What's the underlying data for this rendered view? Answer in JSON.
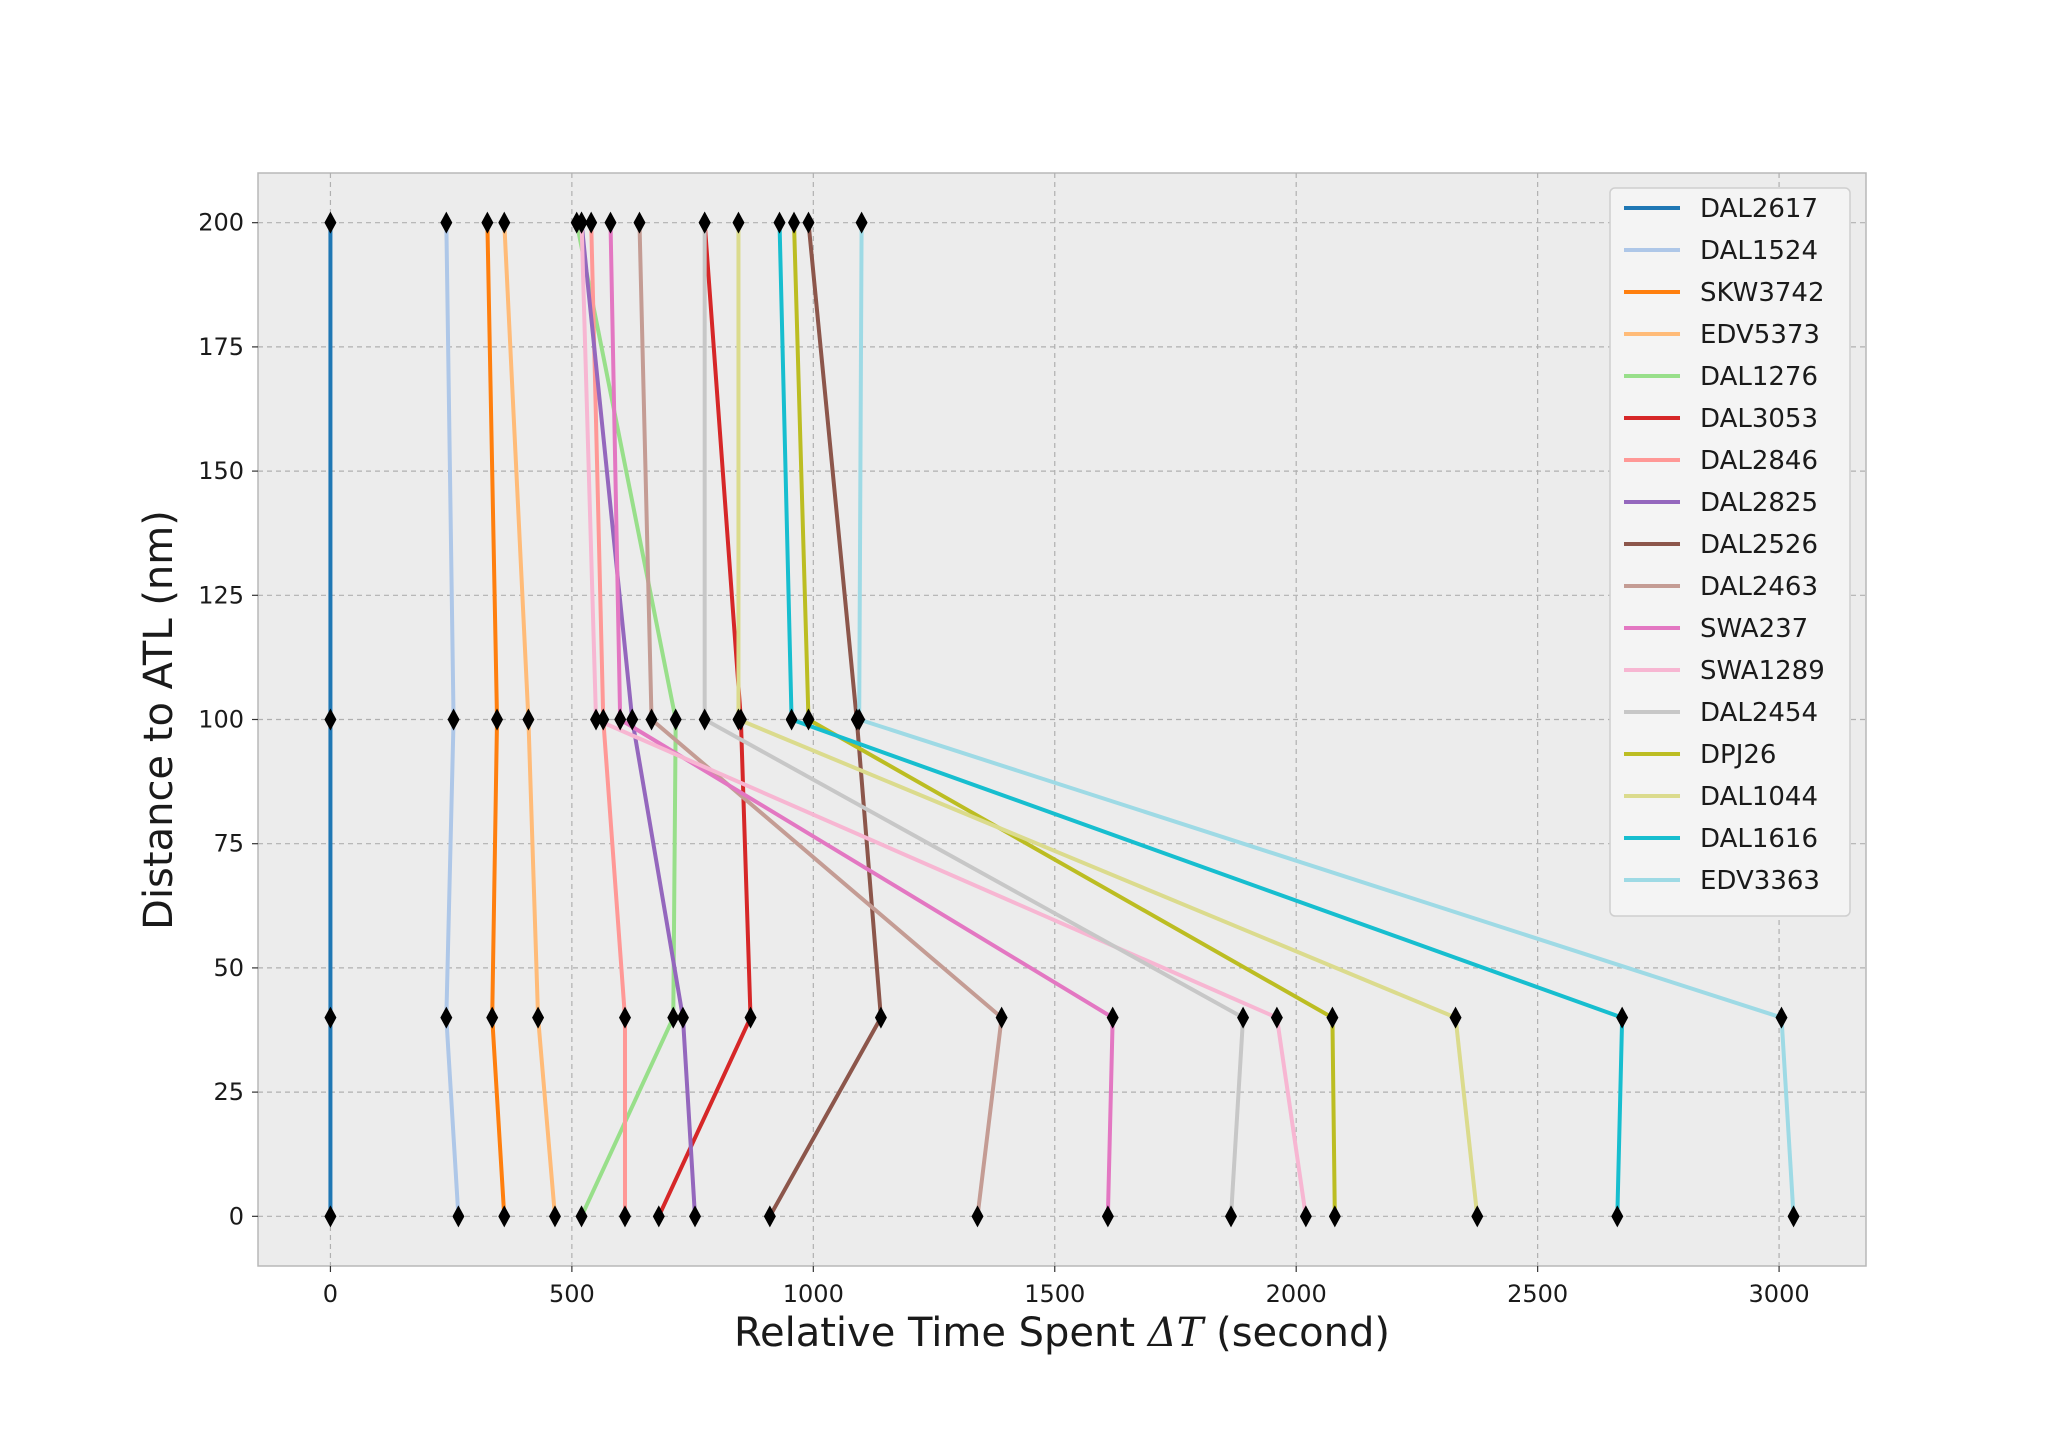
{
  "chart_data": {
    "type": "line",
    "title": "",
    "xlabel": "Relative Time Spent",
    "xlabel_math": "ΔT",
    "xlabel_suffix": "(second)",
    "ylabel": "Distance to ATL (nm)",
    "xlim": [
      -150,
      3180
    ],
    "ylim": [
      -10,
      210
    ],
    "xticks": [
      0,
      500,
      1000,
      1500,
      2000,
      2500,
      3000
    ],
    "yticks": [
      0,
      25,
      50,
      75,
      100,
      125,
      150,
      175,
      200
    ],
    "grid": true,
    "legend": "top-right",
    "background": "#ececec",
    "marker": "diamond",
    "marker_color": "#000000",
    "y": [
      200,
      100,
      40,
      0
    ],
    "series": [
      {
        "name": "DAL2617",
        "color": "#1f77b4",
        "x": [
          0,
          0,
          0,
          0
        ]
      },
      {
        "name": "DAL1524",
        "color": "#aec7e8",
        "x": [
          240,
          255,
          240,
          265
        ]
      },
      {
        "name": "SKW3742",
        "color": "#ff7f0e",
        "x": [
          325,
          345,
          335,
          360
        ]
      },
      {
        "name": "EDV5373",
        "color": "#ffbb78",
        "x": [
          360,
          410,
          430,
          465
        ]
      },
      {
        "name": "DAL1276",
        "color": "#98df8a",
        "x": [
          510,
          715,
          710,
          520
        ]
      },
      {
        "name": "DAL3053",
        "color": "#d62728",
        "x": [
          775,
          850,
          870,
          680
        ]
      },
      {
        "name": "DAL2846",
        "color": "#ff9896",
        "x": [
          540,
          565,
          610,
          610
        ]
      },
      {
        "name": "DAL2825",
        "color": "#9467bd",
        "x": [
          520,
          625,
          730,
          755
        ]
      },
      {
        "name": "DAL2526",
        "color": "#8c564b",
        "x": [
          990,
          1090,
          1140,
          910
        ]
      },
      {
        "name": "DAL2463",
        "color": "#c49c94",
        "x": [
          640,
          665,
          1390,
          1340
        ]
      },
      {
        "name": "SWA237",
        "color": "#e377c2",
        "x": [
          580,
          600,
          1620,
          1610
        ]
      },
      {
        "name": "SWA1289",
        "color": "#f7b6d2",
        "x": [
          520,
          550,
          1960,
          2020
        ]
      },
      {
        "name": "DAL2454",
        "color": "#c7c7c7",
        "x": [
          775,
          775,
          1890,
          1865
        ]
      },
      {
        "name": "DPJ26",
        "color": "#bcbd22",
        "x": [
          960,
          990,
          2075,
          2080
        ]
      },
      {
        "name": "DAL1044",
        "color": "#dbdb8d",
        "x": [
          845,
          845,
          2330,
          2375
        ]
      },
      {
        "name": "DAL1616",
        "color": "#17becf",
        "x": [
          930,
          955,
          2675,
          2665
        ]
      },
      {
        "name": "EDV3363",
        "color": "#9edae5",
        "x": [
          1100,
          1095,
          3005,
          3030
        ]
      }
    ]
  }
}
